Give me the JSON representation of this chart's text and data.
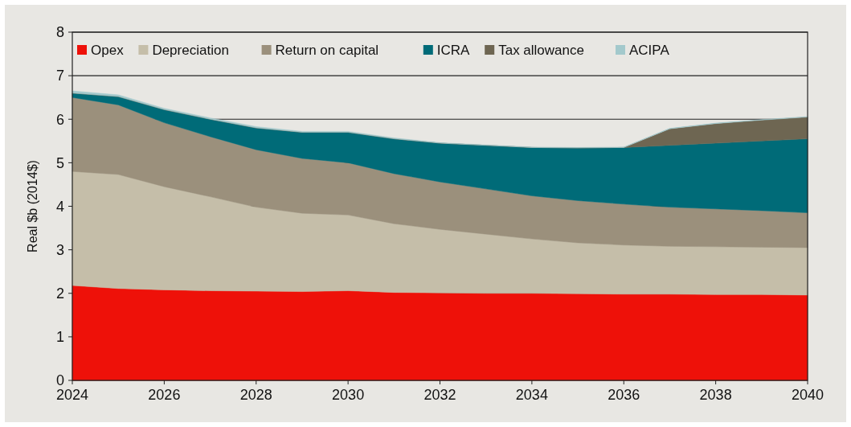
{
  "chart_data": {
    "type": "area",
    "stacked": true,
    "ylabel": "Real $b (2014$)",
    "x": [
      2024,
      2025,
      2026,
      2027,
      2028,
      2029,
      2030,
      2031,
      2032,
      2033,
      2034,
      2035,
      2036,
      2037,
      2038,
      2039,
      2040
    ],
    "xlim": [
      2024,
      2040
    ],
    "xticks": [
      2024,
      2026,
      2028,
      2030,
      2032,
      2034,
      2036,
      2038,
      2040
    ],
    "ylim": [
      0,
      8
    ],
    "yticks": [
      0,
      1,
      2,
      3,
      4,
      5,
      6,
      7,
      8
    ],
    "grid": "y",
    "legend": "top",
    "series": [
      {
        "name": "Opex",
        "color": "#ee1109",
        "values": [
          2.18,
          2.11,
          2.08,
          2.06,
          2.05,
          2.04,
          2.06,
          2.02,
          2.01,
          2.0,
          2.0,
          1.99,
          1.98,
          1.98,
          1.97,
          1.97,
          1.96
        ]
      },
      {
        "name": "Depreciation",
        "color": "#c5bea9",
        "values": [
          2.62,
          2.62,
          2.37,
          2.16,
          1.93,
          1.8,
          1.74,
          1.58,
          1.46,
          1.36,
          1.25,
          1.17,
          1.13,
          1.1,
          1.1,
          1.09,
          1.09
        ]
      },
      {
        "name": "Return on capital",
        "color": "#9b907c",
        "values": [
          1.7,
          1.6,
          1.47,
          1.38,
          1.32,
          1.26,
          1.2,
          1.15,
          1.09,
          1.04,
          0.99,
          0.97,
          0.94,
          0.9,
          0.87,
          0.84,
          0.8
        ]
      },
      {
        "name": "ICRA",
        "color": "#006b78",
        "values": [
          0.1,
          0.19,
          0.3,
          0.4,
          0.5,
          0.6,
          0.7,
          0.8,
          0.89,
          1.0,
          1.11,
          1.21,
          1.3,
          1.42,
          1.51,
          1.6,
          1.7
        ]
      },
      {
        "name": "Tax allowance",
        "color": "#6e6652",
        "values": [
          0,
          0,
          0,
          0,
          0,
          0,
          0,
          0,
          0,
          0,
          0,
          0,
          0,
          0.38,
          0.45,
          0.48,
          0.5
        ]
      },
      {
        "name": "ACIPA",
        "color": "#a3c9cc",
        "values": [
          0.05,
          0.04,
          0.03,
          0.03,
          0.03,
          0.02,
          0.02,
          0.02,
          0.01,
          0.01,
          0.01,
          0.01,
          0.01,
          0.01,
          0.01,
          0.01,
          0.01
        ]
      }
    ]
  }
}
